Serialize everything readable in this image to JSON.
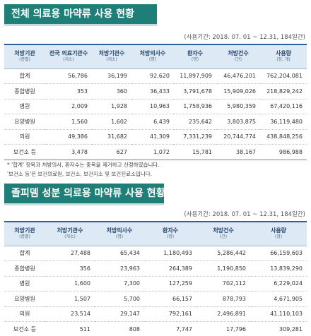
{
  "section1": {
    "title": "전체 의료용 마약류 사용 현황",
    "period": "(사용기간: 2018. 07. 01 ~ 12.31, 184일간)",
    "headers": [
      {
        "label": "처방기관",
        "unit": "(종별)"
      },
      {
        "label": "전국 의료기관수",
        "unit": "(개소)"
      },
      {
        "label": "처방기관수",
        "unit": "(개소)"
      },
      {
        "label": "처방의사수",
        "unit": "(명)"
      },
      {
        "label": "환자수",
        "unit": "(명)"
      },
      {
        "label": "처방건수",
        "unit": "(건)"
      },
      {
        "label": "사용량",
        "unit": "(정, 개)"
      }
    ],
    "rows": [
      [
        "합계",
        "56,786",
        "36,199",
        "92,620",
        "11,897,909",
        "46,476,201",
        "762,204,081"
      ],
      [
        "종합병원",
        "353",
        "360",
        "36,433",
        "3,791,678",
        "15,909,026",
        "218,829,242"
      ],
      [
        "병원",
        "2,009",
        "1,928",
        "10,963",
        "1,758,936",
        "5,980,359",
        "67,420,116"
      ],
      [
        "요양병원",
        "1,560",
        "1,602",
        "6,439",
        "235,642",
        "3,803,875",
        "36,119,480"
      ],
      [
        "의원",
        "49,386",
        "31,682",
        "41,309",
        "7,331,239",
        "20,744,774",
        "438,848,256"
      ],
      [
        "보건소 등",
        "3,478",
        "627",
        "1,072",
        "15,781",
        "38,167",
        "986,988"
      ]
    ],
    "notes": [
      "* '합계' 항목과 처방의사, 환자수는 중복을 제거하고 산정하였습니다.",
      "'보건소 등'은 보건의료원, 보건소, 보건지소 및 보건진료소입니다."
    ]
  },
  "section2": {
    "title": "졸피뎀 성분 의료용 마약류 사용 현황",
    "period": "(사용기간: 2018. 07. 01 ~ 12.31, 184일간)",
    "headers": [
      {
        "label": "처방기관",
        "unit": "(종별)"
      },
      {
        "label": "처방기관수",
        "unit": "(개소)"
      },
      {
        "label": "처방의사수",
        "unit": "(명)"
      },
      {
        "label": "환자수",
        "unit": "(명)"
      },
      {
        "label": "처방건수",
        "unit": "(건)"
      },
      {
        "label": "사용량",
        "unit": "(정)"
      }
    ],
    "rows": [
      [
        "합계",
        "27,488",
        "65,434",
        "1,180,493",
        "5,286,442",
        "66,159,603"
      ],
      [
        "종합병원",
        "356",
        "23,963",
        "264,389",
        "1,190,850",
        "13,839,290"
      ],
      [
        "병원",
        "1,600",
        "7,300",
        "127,259",
        "702,112",
        "6,229,024"
      ],
      [
        "요양병원",
        "1,507",
        "5,700",
        "66,157",
        "878,793",
        "4,671,905"
      ],
      [
        "의원",
        "23,514",
        "29,147",
        "792,161",
        "2,496,891",
        "41,110,103"
      ],
      [
        "보건소 등",
        "511",
        "808",
        "7,747",
        "17,796",
        "309,281"
      ]
    ]
  }
}
